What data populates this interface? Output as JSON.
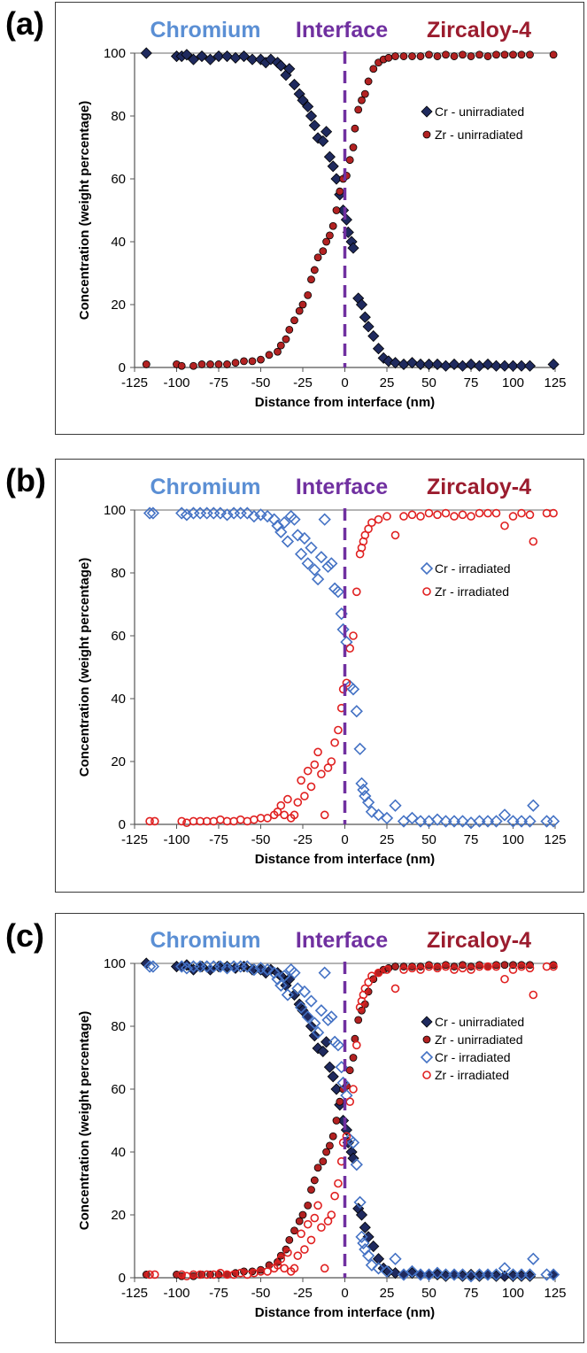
{
  "chart_data": [
    {
      "panel_label": "(a)",
      "type": "scatter",
      "region_labels": [
        {
          "text": "Chromium",
          "color": "#5b8fd4"
        },
        {
          "text": "Interface",
          "color": "#7030a0"
        },
        {
          "text": "Zircaloy-4",
          "color": "#9b1c2e"
        }
      ],
      "xlabel": "Distance from interface (nm)",
      "ylabel": "Concentration (weight percentage)",
      "xlim": [
        -125,
        125
      ],
      "ylim": [
        0,
        100
      ],
      "x_ticks": [
        "-125",
        "-100",
        "-75",
        "-50",
        "-25",
        "0",
        "25",
        "50",
        "75",
        "100",
        "125"
      ],
      "y_ticks": [
        "0",
        "20",
        "40",
        "60",
        "80",
        "100"
      ],
      "interface_line_color": "#7030a0",
      "legend_position": "right",
      "series": [
        {
          "name": "Cr - unirradiated",
          "marker": "diamond-filled",
          "fill": "#1f2a5e",
          "stroke": "#000000",
          "x": [
            -118,
            -100,
            -97,
            -94,
            -90,
            -85,
            -80,
            -75,
            -70,
            -65,
            -60,
            -55,
            -50,
            -47,
            -44,
            -40,
            -38,
            -35,
            -33,
            -30,
            -27,
            -25,
            -22,
            -20,
            -18,
            -16,
            -13,
            -11,
            -9,
            -7,
            -5,
            -3,
            -1,
            1,
            2,
            4,
            5,
            8,
            10,
            12,
            14,
            17,
            20,
            23,
            26,
            30,
            35,
            40,
            45,
            50,
            55,
            60,
            65,
            70,
            75,
            80,
            85,
            90,
            95,
            100,
            105,
            110,
            124
          ],
          "y": [
            100,
            99,
            99,
            99.5,
            98,
            99,
            98,
            99,
            99,
            98.5,
            99,
            98,
            98,
            97,
            98,
            97,
            96,
            93,
            95,
            90,
            87,
            85,
            83,
            80,
            77,
            73,
            72,
            75,
            67,
            64,
            60,
            55,
            50,
            47,
            43,
            40,
            38,
            22,
            20,
            16,
            13,
            10,
            6,
            3,
            2,
            1.5,
            1,
            1.5,
            1,
            1,
            1,
            0.5,
            1,
            0.5,
            1,
            0.5,
            1,
            0.5,
            0.5,
            0.5,
            0.5,
            0.5,
            1
          ]
        },
        {
          "name": "Zr - unirradiated",
          "marker": "circle-filled",
          "fill": "#b22222",
          "stroke": "#000000",
          "x": [
            -118,
            -100,
            -97,
            -90,
            -85,
            -80,
            -75,
            -70,
            -65,
            -60,
            -55,
            -50,
            -45,
            -40,
            -38,
            -35,
            -33,
            -30,
            -27,
            -25,
            -22,
            -20,
            -18,
            -16,
            -13,
            -11,
            -9,
            -7,
            -5,
            -3,
            -1,
            1,
            3,
            5,
            6,
            8,
            10,
            12,
            14,
            17,
            20,
            23,
            26,
            30,
            35,
            40,
            45,
            50,
            55,
            60,
            65,
            70,
            75,
            80,
            85,
            90,
            95,
            100,
            105,
            110,
            124
          ],
          "y": [
            1,
            1,
            0.5,
            0.5,
            1,
            1,
            1,
            1,
            1.5,
            2,
            2,
            2.5,
            4,
            5,
            7,
            9,
            12,
            15,
            18,
            20,
            23,
            28,
            31,
            35,
            37,
            40,
            42,
            45,
            50,
            56,
            60,
            61,
            66,
            70,
            76,
            82,
            85,
            87,
            91,
            95,
            97,
            98,
            98.5,
            99,
            99,
            99,
            99,
            99.5,
            99,
            99.5,
            99,
            99.5,
            99,
            99.5,
            99,
            99.5,
            99.5,
            99.5,
            99.5,
            99.5,
            99.5
          ]
        }
      ]
    },
    {
      "panel_label": "(b)",
      "type": "scatter",
      "region_labels": [
        {
          "text": "Chromium",
          "color": "#5b8fd4"
        },
        {
          "text": "Interface",
          "color": "#7030a0"
        },
        {
          "text": "Zircaloy-4",
          "color": "#9b1c2e"
        }
      ],
      "xlabel": "Distance from interface (nm)",
      "ylabel": "Concentration (weight percentage)",
      "xlim": [
        -125,
        125
      ],
      "ylim": [
        0,
        100
      ],
      "x_ticks": [
        "-125",
        "-100",
        "-75",
        "-50",
        "-25",
        "0",
        "25",
        "50",
        "75",
        "100",
        "125"
      ],
      "y_ticks": [
        "0",
        "20",
        "40",
        "60",
        "80",
        "100"
      ],
      "interface_line_color": "#7030a0",
      "legend_position": "right",
      "series": [
        {
          "name": "Cr - irradiated",
          "marker": "diamond-open",
          "fill": "none",
          "stroke": "#4472c4",
          "x": [
            -116,
            -114,
            -97,
            -94,
            -90,
            -86,
            -82,
            -78,
            -74,
            -70,
            -66,
            -62,
            -58,
            -54,
            -50,
            -46,
            -42,
            -40,
            -38,
            -36,
            -34,
            -32,
            -30,
            -28,
            -26,
            -24,
            -22,
            -20,
            -18,
            -16,
            -14,
            -12,
            -10,
            -8,
            -6,
            -4,
            -2,
            -1,
            1,
            3,
            5,
            7,
            9,
            10,
            11,
            12,
            14,
            16,
            20,
            25,
            30,
            35,
            40,
            45,
            50,
            55,
            60,
            65,
            70,
            75,
            80,
            85,
            90,
            95,
            100,
            105,
            110,
            112,
            120,
            124
          ],
          "y": [
            99,
            99,
            99,
            98.5,
            99,
            99,
            99,
            99,
            99,
            98.5,
            99,
            99,
            99,
            98,
            98.5,
            98,
            97,
            95,
            93,
            96,
            90,
            98,
            97,
            92,
            86,
            91,
            83,
            88,
            81,
            78,
            85,
            97,
            82,
            83,
            75,
            74,
            67,
            62,
            58,
            44,
            43,
            36,
            24,
            13,
            11,
            9,
            7,
            4,
            3,
            2,
            6,
            1,
            2,
            1,
            1,
            1.5,
            1,
            1,
            1,
            0.5,
            1,
            1,
            1,
            3,
            1,
            1,
            1,
            6,
            1,
            1
          ]
        },
        {
          "name": "Zr - irradiated",
          "marker": "circle-open",
          "fill": "none",
          "stroke": "#e02020",
          "x": [
            -116,
            -113,
            -97,
            -94,
            -90,
            -86,
            -82,
            -78,
            -74,
            -70,
            -66,
            -62,
            -58,
            -54,
            -50,
            -46,
            -42,
            -40,
            -38,
            -36,
            -34,
            -32,
            -30,
            -28,
            -26,
            -24,
            -22,
            -20,
            -18,
            -16,
            -14,
            -12,
            -10,
            -8,
            -6,
            -4,
            -2,
            -1,
            1,
            3,
            5,
            7,
            9,
            10,
            11,
            12,
            14,
            16,
            20,
            25,
            30,
            35,
            40,
            45,
            50,
            55,
            60,
            65,
            70,
            75,
            80,
            85,
            90,
            95,
            100,
            105,
            110,
            112,
            120,
            124
          ],
          "y": [
            1,
            1,
            1,
            0.5,
            1,
            1,
            1,
            1,
            1.5,
            1,
            1,
            1.5,
            1,
            1.5,
            2,
            2,
            3,
            4,
            6,
            3,
            8,
            2,
            3,
            7,
            14,
            9,
            17,
            12,
            19,
            23,
            16,
            3,
            18,
            20,
            26,
            30,
            37,
            43,
            45,
            56,
            60,
            74,
            86,
            88,
            90,
            92,
            94,
            96,
            97,
            98,
            92,
            98,
            98.5,
            98,
            99,
            98.5,
            99,
            98,
            98.5,
            98,
            99,
            99,
            99,
            95,
            98,
            99,
            98.5,
            90,
            99,
            99
          ]
        }
      ]
    },
    {
      "panel_label": "(c)",
      "type": "scatter",
      "region_labels": [
        {
          "text": "Chromium",
          "color": "#5b8fd4"
        },
        {
          "text": "Interface",
          "color": "#7030a0"
        },
        {
          "text": "Zircaloy-4",
          "color": "#9b1c2e"
        }
      ],
      "xlabel": "Distance from interface (nm)",
      "ylabel": "Concentration (weight percentage)",
      "xlim": [
        -125,
        125
      ],
      "ylim": [
        0,
        100
      ],
      "x_ticks": [
        "-125",
        "-100",
        "-75",
        "-50",
        "-25",
        "0",
        "25",
        "50",
        "75",
        "100",
        "125"
      ],
      "y_ticks": [
        "0",
        "20",
        "40",
        "60",
        "80",
        "100"
      ],
      "interface_line_color": "#7030a0",
      "legend_position": "right",
      "series_refs": [
        {
          "name": "Cr - unirradiated",
          "from_panel": 0,
          "series": 0
        },
        {
          "name": "Zr - unirradiated",
          "from_panel": 0,
          "series": 1
        },
        {
          "name": "Cr - irradiated",
          "from_panel": 1,
          "series": 0
        },
        {
          "name": "Zr - irradiated",
          "from_panel": 1,
          "series": 1
        }
      ]
    }
  ]
}
